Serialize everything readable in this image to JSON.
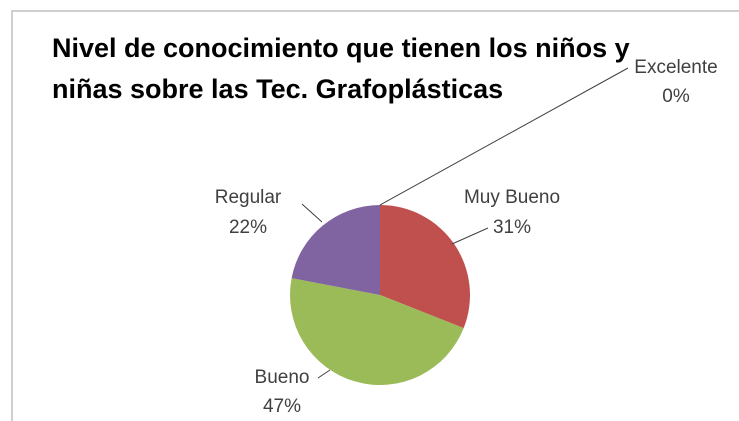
{
  "chart_data": {
    "type": "pie",
    "title": "Nivel de conocimiento que tienen los niños y niñas sobre las Tec. Grafoplásticas",
    "categories": [
      "Excelente",
      "Muy Bueno",
      "Bueno",
      "Regular"
    ],
    "values": [
      0,
      31,
      47,
      22
    ],
    "value_labels": [
      "0%",
      "31%",
      "47%",
      "22%"
    ],
    "colors": [
      "#4f81bd",
      "#c0504d",
      "#9bbb59",
      "#8064a2"
    ]
  }
}
